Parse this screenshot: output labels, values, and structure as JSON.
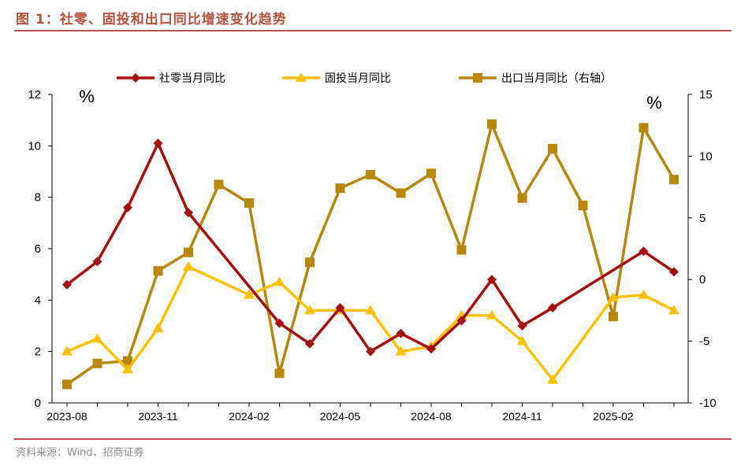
{
  "figure": {
    "title": "图 1：社零、固投和出口同比增速变化趋势",
    "source": "资料来源：Wind、招商证券"
  },
  "chart_data": {
    "type": "line",
    "x_tick_labels": [
      "2023-08",
      "2023-11",
      "2024-02",
      "2024-05",
      "2024-08",
      "2024-11",
      "2025-02"
    ],
    "left_axis": {
      "unit_label": "%",
      "ylim": [
        0,
        12
      ],
      "ticks": [
        0,
        2,
        4,
        6,
        8,
        10,
        12
      ]
    },
    "right_axis": {
      "unit_label": "%",
      "ylim": [
        -10,
        15
      ],
      "ticks": [
        -10,
        -5,
        0,
        5,
        10,
        15
      ]
    },
    "legend_position": "top",
    "grid": false,
    "series": [
      {
        "name": "社零当月同比",
        "axis": "left",
        "color": "#a50e0e",
        "marker": "diamond",
        "points": [
          {
            "x": "2023-08",
            "y": 4.6
          },
          {
            "x": "2023-09",
            "y": 5.5
          },
          {
            "x": "2023-10",
            "y": 7.6
          },
          {
            "x": "2023-11",
            "y": 10.1
          },
          {
            "x": "2023-12",
            "y": 7.4
          },
          {
            "x": "2024-03",
            "y": 3.1
          },
          {
            "x": "2024-04",
            "y": 2.3
          },
          {
            "x": "2024-05",
            "y": 3.7
          },
          {
            "x": "2024-06",
            "y": 2.0
          },
          {
            "x": "2024-07",
            "y": 2.7
          },
          {
            "x": "2024-08",
            "y": 2.1
          },
          {
            "x": "2024-09",
            "y": 3.2
          },
          {
            "x": "2024-10",
            "y": 4.8
          },
          {
            "x": "2024-11",
            "y": 3.0
          },
          {
            "x": "2024-12",
            "y": 3.7
          },
          {
            "x": "2025-03",
            "y": 5.9
          },
          {
            "x": "2025-04",
            "y": 5.1
          }
        ]
      },
      {
        "name": "固投当月同比",
        "axis": "left",
        "color": "#ffc000",
        "marker": "triangle",
        "points": [
          {
            "x": "2023-08",
            "y": 2.0
          },
          {
            "x": "2023-09",
            "y": 2.5
          },
          {
            "x": "2023-10",
            "y": 1.3
          },
          {
            "x": "2023-11",
            "y": 2.9
          },
          {
            "x": "2023-12",
            "y": 5.3
          },
          {
            "x": "2024-02",
            "y": 4.2
          },
          {
            "x": "2024-03",
            "y": 4.7
          },
          {
            "x": "2024-04",
            "y": 3.6
          },
          {
            "x": "2024-05",
            "y": 3.6
          },
          {
            "x": "2024-06",
            "y": 3.6
          },
          {
            "x": "2024-07",
            "y": 2.0
          },
          {
            "x": "2024-08",
            "y": 2.2
          },
          {
            "x": "2024-09",
            "y": 3.4
          },
          {
            "x": "2024-10",
            "y": 3.4
          },
          {
            "x": "2024-11",
            "y": 2.4
          },
          {
            "x": "2024-12",
            "y": 0.9
          },
          {
            "x": "2025-02",
            "y": 4.1
          },
          {
            "x": "2025-03",
            "y": 4.2
          },
          {
            "x": "2025-04",
            "y": 3.6
          }
        ]
      },
      {
        "name": "出口当月同比（右轴）",
        "axis": "right",
        "color": "#b8860b",
        "marker": "square",
        "points": [
          {
            "x": "2023-08",
            "y": -8.5
          },
          {
            "x": "2023-09",
            "y": -6.8
          },
          {
            "x": "2023-10",
            "y": -6.6
          },
          {
            "x": "2023-11",
            "y": 0.7
          },
          {
            "x": "2023-12",
            "y": 2.2
          },
          {
            "x": "2024-01",
            "y": 7.7
          },
          {
            "x": "2024-02",
            "y": 6.2
          },
          {
            "x": "2024-03",
            "y": -7.6
          },
          {
            "x": "2024-04",
            "y": 1.4
          },
          {
            "x": "2024-05",
            "y": 7.4
          },
          {
            "x": "2024-06",
            "y": 8.5
          },
          {
            "x": "2024-07",
            "y": 7.0
          },
          {
            "x": "2024-08",
            "y": 8.6
          },
          {
            "x": "2024-09",
            "y": 2.4
          },
          {
            "x": "2024-10",
            "y": 12.6
          },
          {
            "x": "2024-11",
            "y": 6.6
          },
          {
            "x": "2024-12",
            "y": 10.6
          },
          {
            "x": "2025-01",
            "y": 6.0
          },
          {
            "x": "2025-02",
            "y": -3.0
          },
          {
            "x": "2025-03",
            "y": 12.3
          },
          {
            "x": "2025-04",
            "y": 8.1
          }
        ]
      }
    ]
  }
}
